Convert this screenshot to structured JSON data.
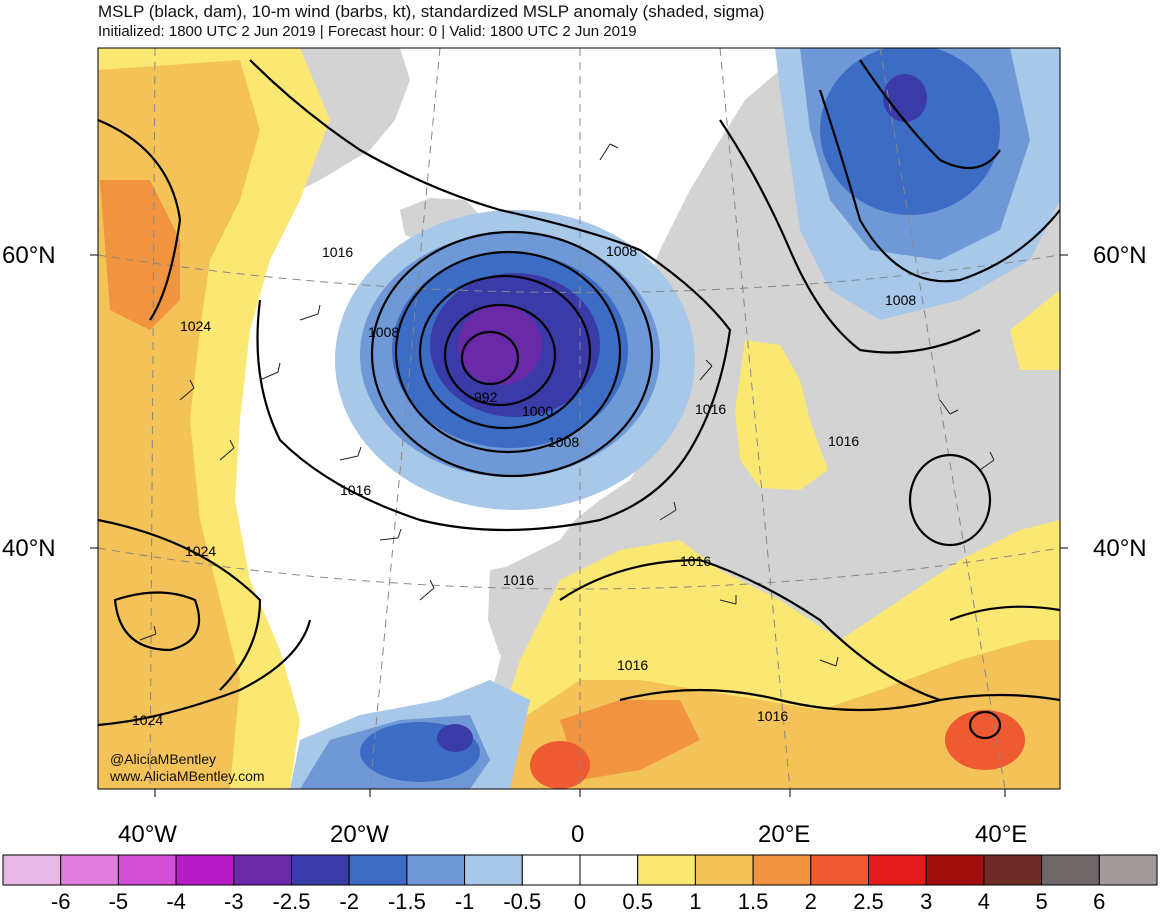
{
  "header": {
    "title": "MSLP (black, dam), 10-m wind (barbs, kt), standardized MSLP anomaly (shaded, sigma)",
    "subtitle": "Initialized: 1800 UTC 2 Jun 2019 | Forecast hour: 0 | Valid: 1800 UTC 2 Jun 2019"
  },
  "map": {
    "lat_labels": [
      "60°N",
      "40°N"
    ],
    "lon_labels": [
      "40°W",
      "20°W",
      "0",
      "20°E",
      "40°E"
    ],
    "land_color": "#d3d3d3",
    "ocean_color": "#ffffff",
    "isobar_labels": [
      "1016",
      "1024",
      "1008",
      "992",
      "1000",
      "1008",
      "1016",
      "1008",
      "1016",
      "1016",
      "1016",
      "1024",
      "1016",
      "1016",
      "1016",
      "1024",
      "1008",
      "1016"
    ],
    "credits": [
      "@AliciaMBentley",
      "www.AliciaMBentley.com"
    ]
  },
  "colorbar": {
    "labels": [
      "-6",
      "-5",
      "-4",
      "-3",
      "-2.5",
      "-2",
      "-1.5",
      "-1",
      "-0.5",
      "0",
      "0.5",
      "1",
      "1.5",
      "2",
      "2.5",
      "3",
      "4",
      "5",
      "6"
    ],
    "colors": [
      "#e8b8e6",
      "#e07fe0",
      "#d44fd8",
      "#b51cc6",
      "#6a2aa8",
      "#3a3aa8",
      "#3c6cc4",
      "#6f98d6",
      "#a7c8e8",
      "#ffffff",
      "#ffffff",
      "#fbe873",
      "#f3c259",
      "#f1943f",
      "#ee5a32",
      "#e31b1b",
      "#a10d0d",
      "#6e2c28",
      "#6f6767",
      "#a39b9b"
    ]
  },
  "chart_data": {
    "type": "heatmap",
    "title": "MSLP (black, dam), 10-m wind (barbs, kt), standardized MSLP anomaly (shaded, sigma)",
    "valid": "1800 UTC 2 Jun 2019",
    "forecast_hour": 0,
    "colorbar_levels": [
      -6,
      -5,
      -4,
      -3,
      -2.5,
      -2,
      -1.5,
      -1,
      -0.5,
      0,
      0.5,
      1,
      1.5,
      2,
      2.5,
      3,
      4,
      5,
      6
    ],
    "features": [
      {
        "name": "Low near Ireland",
        "min_mslp": "992",
        "anomaly_sigma": "-2.5 to -3"
      },
      {
        "name": "Low over northern Scandinavia",
        "anomaly_sigma": "-2.5"
      },
      {
        "name": "Subtropical high",
        "mslp": "1024"
      }
    ]
  }
}
